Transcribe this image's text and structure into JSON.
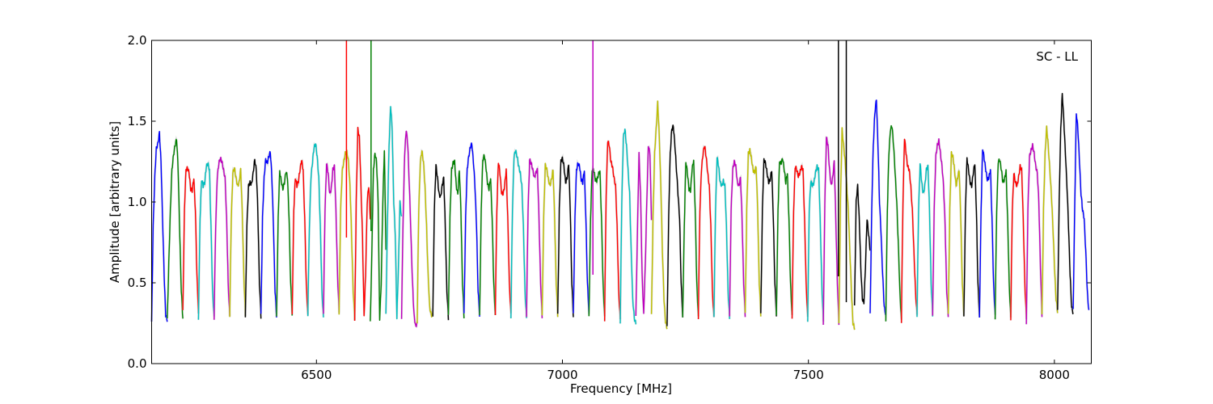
{
  "chart_data": {
    "type": "line",
    "title": "",
    "annotation": "SC - LL",
    "xlabel": "Frequency [MHz]",
    "ylabel": "Amplitude [arbitrary units]",
    "xlim": [
      6165,
      8075
    ],
    "ylim": [
      0.0,
      2.0
    ],
    "xticks": [
      6500,
      7000,
      7500,
      8000
    ],
    "yticks": [
      0.0,
      0.5,
      1.0,
      1.5,
      2.0
    ],
    "xtick_labels": [
      "6500",
      "7000",
      "7500",
      "8000"
    ],
    "ytick_labels": [
      "0.0",
      "0.5",
      "1.0",
      "1.5",
      "2.0"
    ],
    "grid": false,
    "legend": "none",
    "channel_width_mhz": 31.75,
    "color_cycle": [
      "#0000ff",
      "#008000",
      "#ff0000",
      "#00bfbf",
      "#bf00bf",
      "#bfbf00",
      "#000000"
    ],
    "shadow_color": "#bbbbbb",
    "series": [
      {
        "color": "#0000ff",
        "values": [
          0.26,
          0.85,
          1.15,
          1.33,
          1.36,
          1.43,
          1.25,
          0.9,
          0.55,
          0.3,
          0.27
        ]
      },
      {
        "color": "#008000",
        "values": [
          0.27,
          0.62,
          0.95,
          1.2,
          1.29,
          1.35,
          1.39,
          1.2,
          0.8,
          0.45,
          0.28
        ]
      },
      {
        "color": "#ff0000",
        "values": [
          0.32,
          0.95,
          1.2,
          1.21,
          1.18,
          1.08,
          1.07,
          1.15,
          0.95,
          0.55,
          0.3
        ]
      },
      {
        "color": "#00bfbf",
        "values": [
          0.27,
          0.9,
          1.14,
          1.1,
          1.12,
          1.22,
          1.24,
          1.2,
          0.85,
          0.45,
          0.28
        ]
      },
      {
        "color": "#bf00bf",
        "values": [
          0.28,
          0.85,
          1.15,
          1.24,
          1.27,
          1.25,
          1.2,
          1.15,
          0.9,
          0.5,
          0.29
        ]
      },
      {
        "color": "#bfbf00",
        "values": [
          0.3,
          0.9,
          1.18,
          1.21,
          1.15,
          1.1,
          1.12,
          1.2,
          0.95,
          0.55,
          0.3
        ]
      },
      {
        "color": "#000000",
        "values": [
          0.29,
          0.85,
          1.1,
          1.12,
          1.11,
          1.18,
          1.26,
          1.2,
          0.95,
          0.5,
          0.29
        ]
      },
      {
        "color": "#0000ff",
        "values": [
          0.3,
          0.9,
          1.15,
          1.26,
          1.24,
          1.28,
          1.31,
          1.15,
          0.85,
          0.45,
          0.29
        ]
      },
      {
        "color": "#008000",
        "values": [
          0.28,
          0.9,
          1.19,
          1.13,
          1.08,
          1.12,
          1.19,
          1.15,
          0.9,
          0.5,
          0.29
        ]
      },
      {
        "color": "#ff0000",
        "values": [
          0.3,
          0.95,
          1.15,
          1.1,
          1.13,
          1.2,
          1.26,
          1.2,
          0.9,
          0.5,
          0.29
        ]
      },
      {
        "color": "#00bfbf",
        "values": [
          0.3,
          0.85,
          1.15,
          1.25,
          1.34,
          1.36,
          1.28,
          1.15,
          0.85,
          0.45,
          0.28
        ]
      },
      {
        "color": "#bf00bf",
        "values": [
          0.32,
          0.95,
          1.24,
          1.18,
          1.05,
          1.08,
          1.2,
          1.22,
          0.95,
          0.55,
          0.32
        ]
      },
      {
        "color": "#bfbf00",
        "values": [
          0.31,
          0.95,
          1.19,
          1.25,
          1.3,
          1.31,
          1.25,
          1.1,
          0.8,
          0.45,
          0.28
        ]
      },
      {
        "color": "#ff0000",
        "values": [
          0.26,
          1.0,
          1.45,
          1.4,
          1.1,
          0.78,
          0.3,
          0.55,
          1.0,
          1.1,
          0.9
        ]
      },
      {
        "color": "#008000",
        "values": [
          0.25,
          0.7,
          1.2,
          1.3,
          1.25,
          1.0,
          0.28,
          0.5,
          1.0,
          1.32,
          0.7
        ]
      },
      {
        "color": "#00bfbf",
        "values": [
          0.3,
          0.9,
          1.35,
          1.6,
          1.45,
          1.0,
          0.8,
          0.28,
          0.6,
          1.0,
          0.9
        ]
      },
      {
        "color": "#bf00bf",
        "values": [
          0.28,
          0.9,
          1.3,
          1.45,
          1.35,
          1.1,
          0.8,
          0.5,
          0.3,
          0.23,
          0.25
        ]
      },
      {
        "color": "#bfbf00",
        "values": [
          0.26,
          0.95,
          1.24,
          1.32,
          1.25,
          1.1,
          0.85,
          0.55,
          0.35,
          0.3,
          0.3
        ]
      },
      {
        "color": "#000000",
        "values": [
          0.3,
          0.95,
          1.23,
          1.15,
          1.05,
          1.03,
          1.1,
          1.15,
          0.85,
          0.45,
          0.28
        ]
      },
      {
        "color": "#008000",
        "values": [
          0.3,
          0.9,
          1.2,
          1.24,
          1.25,
          1.1,
          1.05,
          1.2,
          0.95,
          0.5,
          0.29
        ]
      },
      {
        "color": "#0000ff",
        "values": [
          0.3,
          0.9,
          1.2,
          1.28,
          1.34,
          1.36,
          1.25,
          1.1,
          0.85,
          0.45,
          0.29
        ]
      },
      {
        "color": "#008000",
        "values": [
          0.29,
          0.95,
          1.26,
          1.29,
          1.22,
          1.12,
          1.08,
          1.15,
          0.9,
          0.5,
          0.29
        ]
      },
      {
        "color": "#ff0000",
        "values": [
          0.3,
          0.95,
          1.25,
          1.18,
          1.06,
          1.05,
          1.1,
          1.2,
          0.9,
          0.5,
          0.3
        ]
      },
      {
        "color": "#00bfbf",
        "values": [
          0.29,
          0.95,
          1.28,
          1.32,
          1.28,
          1.22,
          1.18,
          1.1,
          0.85,
          0.45,
          0.28
        ]
      },
      {
        "color": "#bf00bf",
        "values": [
          0.3,
          0.95,
          1.26,
          1.24,
          1.2,
          1.15,
          1.18,
          1.2,
          0.9,
          0.5,
          0.29
        ]
      },
      {
        "color": "#bfbf00",
        "values": [
          0.3,
          0.9,
          1.23,
          1.2,
          1.14,
          1.1,
          1.14,
          1.2,
          0.9,
          0.5,
          0.3
        ]
      },
      {
        "color": "#000000",
        "values": [
          0.3,
          0.95,
          1.25,
          1.27,
          1.22,
          1.12,
          1.15,
          1.24,
          0.95,
          0.5,
          0.29
        ]
      },
      {
        "color": "#0000ff",
        "values": [
          0.3,
          0.9,
          1.2,
          1.24,
          1.22,
          1.14,
          1.12,
          1.2,
          0.9,
          0.5,
          0.3
        ]
      },
      {
        "color": "#008000",
        "values": [
          0.29,
          0.9,
          1.2,
          1.2,
          1.14,
          1.13,
          1.17,
          1.19,
          0.9,
          0.5,
          0.28
        ]
      },
      {
        "color": "#ff0000",
        "values": [
          0.27,
          1.05,
          1.38,
          1.35,
          1.25,
          1.22,
          1.15,
          1.1,
          0.85,
          0.45,
          0.27
        ]
      },
      {
        "color": "#00bfbf",
        "values": [
          0.26,
          1.0,
          1.4,
          1.45,
          1.35,
          1.2,
          1.05,
          0.7,
          0.4,
          0.28,
          0.25
        ]
      },
      {
        "color": "#bf00bf",
        "values": [
          0.3,
          0.8,
          1.3,
          1.05,
          0.55,
          0.3,
          0.6,
          1.0,
          1.35,
          1.3,
          0.9
        ]
      },
      {
        "color": "#bfbf00",
        "values": [
          0.3,
          0.9,
          1.3,
          1.45,
          1.62,
          1.4,
          1.1,
          0.7,
          0.4,
          0.26,
          0.22
        ]
      },
      {
        "color": "#000000",
        "values": [
          0.22,
          0.9,
          1.3,
          1.45,
          1.47,
          1.35,
          1.2,
          1.05,
          0.9,
          0.5,
          0.28
        ]
      },
      {
        "color": "#008000",
        "values": [
          0.28,
          0.85,
          1.25,
          1.18,
          1.08,
          1.07,
          1.2,
          1.26,
          0.95,
          0.5,
          0.28
        ]
      },
      {
        "color": "#ff0000",
        "values": [
          0.28,
          0.95,
          1.2,
          1.3,
          1.35,
          1.28,
          1.18,
          1.1,
          0.85,
          0.45,
          0.28
        ]
      },
      {
        "color": "#00bfbf",
        "values": [
          0.3,
          0.95,
          1.28,
          1.22,
          1.12,
          1.1,
          1.13,
          1.1,
          0.85,
          0.45,
          0.28
        ]
      },
      {
        "color": "#bf00bf",
        "values": [
          0.3,
          0.95,
          1.2,
          1.25,
          1.22,
          1.12,
          1.1,
          1.15,
          0.9,
          0.5,
          0.3
        ]
      },
      {
        "color": "#bfbf00",
        "values": [
          0.31,
          0.95,
          1.3,
          1.32,
          1.27,
          1.2,
          1.18,
          1.22,
          0.95,
          0.5,
          0.3
        ]
      },
      {
        "color": "#000000",
        "values": [
          0.3,
          0.95,
          1.26,
          1.24,
          1.18,
          1.12,
          1.14,
          1.2,
          0.9,
          0.5,
          0.29
        ]
      },
      {
        "color": "#008000",
        "values": [
          0.29,
          0.95,
          1.25,
          1.24,
          1.27,
          1.2,
          1.12,
          1.18,
          0.9,
          0.5,
          0.29
        ]
      },
      {
        "color": "#ff0000",
        "values": [
          0.28,
          0.95,
          1.22,
          1.2,
          1.16,
          1.18,
          1.22,
          1.2,
          0.9,
          0.5,
          0.28
        ]
      },
      {
        "color": "#00bfbf",
        "values": [
          0.27,
          0.95,
          1.13,
          1.1,
          1.12,
          1.18,
          1.22,
          1.2,
          0.9,
          0.5,
          0.26
        ]
      },
      {
        "color": "#bf00bf",
        "values": [
          0.25,
          1.0,
          1.4,
          1.35,
          1.2,
          1.1,
          1.15,
          1.25,
          0.9,
          0.5,
          0.25
        ]
      },
      {
        "color": "#bfbf00",
        "values": [
          0.25,
          1.0,
          1.45,
          1.35,
          1.25,
          1.1,
          0.95,
          0.7,
          0.45,
          0.25,
          0.22
        ]
      },
      {
        "color": "#000000",
        "values": [
          0.35,
          1.0,
          1.1,
          0.9,
          0.6,
          0.4,
          0.38,
          0.6,
          0.9,
          0.8,
          0.7
        ]
      },
      {
        "color": "#0000ff",
        "values": [
          0.3,
          0.95,
          1.35,
          1.55,
          1.64,
          1.35,
          1.0,
          0.8,
          0.55,
          0.35,
          0.3
        ]
      },
      {
        "color": "#008000",
        "values": [
          0.26,
          0.95,
          1.3,
          1.45,
          1.47,
          1.35,
          1.18,
          1.0,
          0.75,
          0.45,
          0.26
        ]
      },
      {
        "color": "#ff0000",
        "values": [
          0.26,
          1.0,
          1.4,
          1.3,
          1.22,
          1.2,
          1.1,
          0.95,
          0.7,
          0.45,
          0.3
        ]
      },
      {
        "color": "#00bfbf",
        "values": [
          0.3,
          0.95,
          1.24,
          1.12,
          1.05,
          1.1,
          1.2,
          1.22,
          0.95,
          0.5,
          0.3
        ]
      },
      {
        "color": "#bf00bf",
        "values": [
          0.3,
          0.95,
          1.28,
          1.35,
          1.38,
          1.3,
          1.22,
          1.1,
          0.85,
          0.45,
          0.3
        ]
      },
      {
        "color": "#bfbf00",
        "values": [
          0.3,
          0.95,
          1.3,
          1.28,
          1.2,
          1.1,
          1.15,
          1.2,
          0.9,
          0.5,
          0.3
        ]
      },
      {
        "color": "#000000",
        "values": [
          0.28,
          0.95,
          1.27,
          1.2,
          1.12,
          1.1,
          1.18,
          1.24,
          0.95,
          0.5,
          0.28
        ]
      },
      {
        "color": "#0000ff",
        "values": [
          0.28,
          0.95,
          1.33,
          1.27,
          1.2,
          1.14,
          1.15,
          1.2,
          0.9,
          0.5,
          0.29
        ]
      },
      {
        "color": "#008000",
        "values": [
          0.28,
          0.95,
          1.25,
          1.26,
          1.2,
          1.12,
          1.14,
          1.19,
          0.9,
          0.5,
          0.28
        ]
      },
      {
        "color": "#ff0000",
        "values": [
          0.28,
          0.95,
          1.18,
          1.12,
          1.1,
          1.15,
          1.22,
          1.2,
          0.9,
          0.5,
          0.28
        ]
      },
      {
        "color": "#bf00bf",
        "values": [
          0.25,
          0.95,
          1.28,
          1.32,
          1.35,
          1.3,
          1.22,
          1.18,
          1.0,
          0.6,
          0.3
        ]
      },
      {
        "color": "#bfbf00",
        "values": [
          0.3,
          0.95,
          1.3,
          1.46,
          1.35,
          1.2,
          1.05,
          0.85,
          0.6,
          0.4,
          0.32
        ]
      },
      {
        "color": "#000000",
        "values": [
          0.32,
          1.0,
          1.45,
          1.67,
          1.5,
          1.3,
          1.1,
          0.85,
          0.55,
          0.35,
          0.31
        ]
      },
      {
        "color": "#0000ff",
        "values": [
          0.33,
          1.0,
          1.55,
          1.45,
          1.25,
          1.05,
          0.95,
          0.9,
          0.7,
          0.45,
          0.32
        ]
      }
    ],
    "spikes": [
      {
        "color": "#ff0000",
        "x": 6561,
        "y_top": 2.0,
        "y_bottom": 0.78
      },
      {
        "color": "#008000",
        "x": 6611,
        "y_top": 2.0,
        "y_bottom": 0.82
      },
      {
        "color": "#bf00bf",
        "x": 7062,
        "y_top": 2.0,
        "y_bottom": 0.55
      },
      {
        "color": "#000000",
        "x": 7561,
        "y_top": 2.0,
        "y_bottom": 0.54
      },
      {
        "color": "#000000",
        "x": 7577,
        "y_top": 2.0,
        "y_bottom": 0.38
      }
    ]
  }
}
